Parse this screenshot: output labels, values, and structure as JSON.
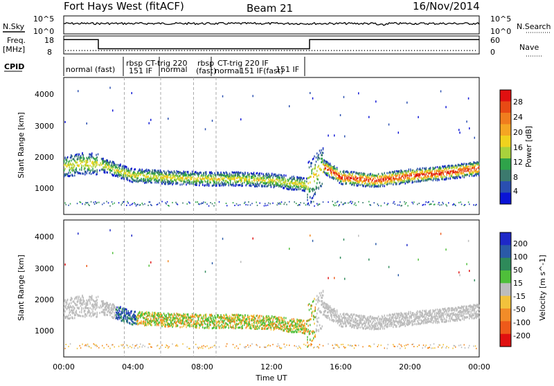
{
  "header": {
    "radar": "Fort Hays West (fitACF)",
    "beam": "Beam 21",
    "date": "16/Nov/2014"
  },
  "noise_panel": {
    "left_label": "N.Sky",
    "right_label": "N.Search",
    "left_ticks": [
      "10^5",
      "10^0"
    ],
    "right_ticks": [
      "10^5",
      "10^0"
    ]
  },
  "freq_panel": {
    "left_label_1": "Freq.",
    "left_label_2": "[MHz]",
    "left_ticks": [
      "18",
      "8"
    ],
    "right_label": "Nave",
    "right_ticks": [
      "60",
      "0"
    ]
  },
  "cpid_panel": {
    "label": "CPID",
    "segments": [
      {
        "text": "normal (fast)"
      },
      {
        "text": "rbsp CT-trig 220"
      },
      {
        "text": "151 IF"
      },
      {
        "text": "normal"
      },
      {
        "text": "rbsp"
      },
      {
        "text": "(fast)"
      },
      {
        "text": "CT-trig 220 IF"
      },
      {
        "text": "normal"
      },
      {
        "text": "151 IF(fast)"
      },
      {
        "text": "151 IF"
      }
    ]
  },
  "power_panel": {
    "ylabel": "Slant Range [km]",
    "yticks": [
      "1000",
      "2000",
      "3000",
      "4000"
    ],
    "colorbar_label": "Power [dB]",
    "colorbar_ticks": [
      "4",
      "8",
      "12",
      "16",
      "20",
      "24",
      "28"
    ],
    "colors": [
      "#0a14d6",
      "#2a4fb0",
      "#3c7a6e",
      "#2fa34a",
      "#a8d23c",
      "#f0d21e",
      "#f5a623",
      "#f07d1e",
      "#e84a14",
      "#e01010"
    ]
  },
  "velocity_panel": {
    "ylabel": "Slant Range [km]",
    "yticks": [
      "1000",
      "2000",
      "3000",
      "4000"
    ],
    "colorbar_label": "Velocity [m s^-1]",
    "colorbar_ticks": [
      "200",
      "100",
      "50",
      "15",
      "-15",
      "-50",
      "-100",
      "-200"
    ],
    "colors": [
      "#1e28c8",
      "#2a5aa8",
      "#2e8a5a",
      "#4fbf3a",
      "#bdbdbd",
      "#f2c23c",
      "#f28c28",
      "#ee5a1a",
      "#e01010"
    ]
  },
  "xaxis": {
    "label": "Time UT",
    "ticks": [
      "00:00",
      "04:00",
      "08:00",
      "12:00",
      "16:00",
      "20:00",
      "00:00"
    ]
  },
  "chart_data": {
    "type": "heatmap",
    "title": "Fort Hays West (fitACF)  Beam 21  16/Nov/2014",
    "xlabel": "Time UT",
    "ylabel": "Slant Range [km]",
    "xlim": [
      0,
      24
    ],
    "ylim": [
      0,
      4500
    ],
    "freq_range_mhz": [
      8,
      18
    ],
    "nave_range": [
      0,
      60
    ],
    "power_range_db": [
      0,
      30
    ],
    "velocity_range_ms": [
      -200,
      200
    ],
    "freq_mhz_by_hour": [
      {
        "t": 0,
        "freq": 16.5
      },
      {
        "t": 2,
        "freq": 16.5
      },
      {
        "t": 2,
        "freq": 10.5
      },
      {
        "t": 14.2,
        "freq": 10.5
      },
      {
        "t": 14.2,
        "freq": 16.5
      },
      {
        "t": 24,
        "freq": 16.5
      }
    ],
    "cpid_boundaries_hour": [
      3.5,
      5.6,
      7.5,
      8.8
    ],
    "scatter_band_center_km": [
      {
        "t": 0.0,
        "r": 1600
      },
      {
        "t": 1.0,
        "r": 1700
      },
      {
        "t": 2.0,
        "r": 1700
      },
      {
        "t": 3.0,
        "r": 1500
      },
      {
        "t": 4.0,
        "r": 1300
      },
      {
        "t": 6.0,
        "r": 1250
      },
      {
        "t": 8.0,
        "r": 1200
      },
      {
        "t": 10.0,
        "r": 1200
      },
      {
        "t": 12.0,
        "r": 1150
      },
      {
        "t": 14.0,
        "r": 1000
      },
      {
        "t": 15.0,
        "r": 1600
      },
      {
        "t": 16.0,
        "r": 1250
      },
      {
        "t": 18.0,
        "r": 1150
      },
      {
        "t": 20.0,
        "r": 1300
      },
      {
        "t": 22.0,
        "r": 1400
      },
      {
        "t": 24.0,
        "r": 1550
      }
    ]
  }
}
